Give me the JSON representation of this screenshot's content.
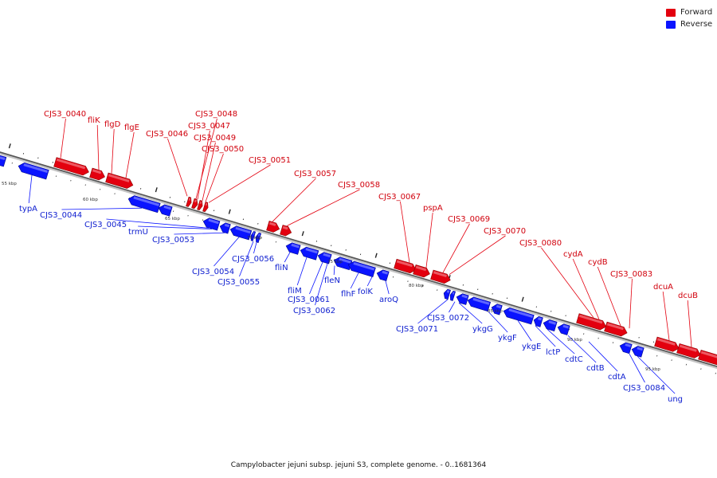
{
  "legend": {
    "forward_label": "Forward",
    "reverse_label": "Reverse",
    "forward_color": "#e3000f",
    "reverse_color": "#0a14ff"
  },
  "caption": "Campylobacter jejuni subsp. jejuni S3, complete genome. - 0..1681364",
  "scale_labels": [
    "55 kbp",
    "60 kbp",
    "65 kbp",
    "70 kbp",
    "75 kbp",
    "80 kbp",
    "85 kbp",
    "90 kbp",
    "95 kbp"
  ],
  "forward_genes": [
    "CJS3_0040",
    "fliK",
    "flgD",
    "flgE",
    "CJS3_0046",
    "CJS3_0048",
    "CJS3_0047",
    "CJS3_0049",
    "CJS3_0050",
    "CJS3_0051",
    "CJS3_0057",
    "CJS3_0058",
    "CJS3_0067",
    "pspA",
    "CJS3_0069",
    "CJS3_0070",
    "CJS3_0080",
    "cydA",
    "cydB",
    "CJS3_0083",
    "dcuA",
    "dcuB"
  ],
  "reverse_genes": [
    "typA",
    "CJS3_0044",
    "CJS3_0045",
    "trmU",
    "CJS3_0053",
    "CJS3_0054",
    "CJS3_0055",
    "CJS3_0056",
    "fliN",
    "fliM",
    "CJS3_0061",
    "CJS3_0062",
    "fleN",
    "flhF",
    "folK",
    "aroQ",
    "CJS3_0071",
    "CJS3_0072",
    "ykgG",
    "ykgF",
    "ykgE",
    "lctP",
    "cdtC",
    "cdtB",
    "cdtA",
    "CJS3_0084",
    "ung"
  ]
}
